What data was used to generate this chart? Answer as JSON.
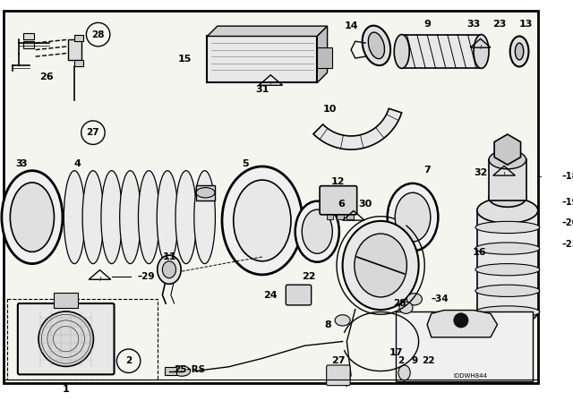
{
  "bg_color": "#ffffff",
  "line_color": "#000000",
  "text_color": "#000000",
  "diagram_code": "IDDWH844"
}
